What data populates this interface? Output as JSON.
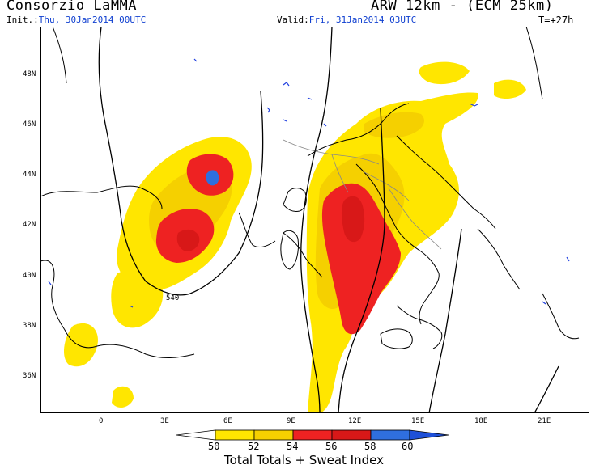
{
  "header": {
    "organization": "Consorzio LaMMA",
    "model": "ARW 12km - (ECM 25km)",
    "init_label": "Init.:",
    "init_value": "Thu, 30Jan2014 00UTC",
    "valid_label": "Valid:",
    "valid_value": "Fri, 31Jan2014 03UTC",
    "lead_time": "T=+27h"
  },
  "map": {
    "lat_labels": [
      "48N",
      "46N",
      "44N",
      "42N",
      "40N",
      "38N",
      "36N"
    ],
    "lon_labels": [
      "0",
      "3E",
      "6E",
      "9E",
      "12E",
      "15E",
      "18E",
      "21E"
    ],
    "contour_label": "540",
    "colors": {
      "land_border": "#000000",
      "water_blue": "#2040e0",
      "field_50": "#ffe600",
      "field_52": "#f5d000",
      "field_54": "#ee2222",
      "field_56": "#d81818",
      "field_58": "#2f6fde",
      "regional_border": "#888888"
    }
  },
  "legend": {
    "values": [
      "50",
      "52",
      "54",
      "56",
      "58",
      "60"
    ],
    "colors": [
      "#ffffff",
      "#ffe600",
      "#f5d000",
      "#ee2222",
      "#d81818",
      "#2f6fde",
      "#1e50d8"
    ],
    "title": "Total Totals + Sweat Index"
  }
}
